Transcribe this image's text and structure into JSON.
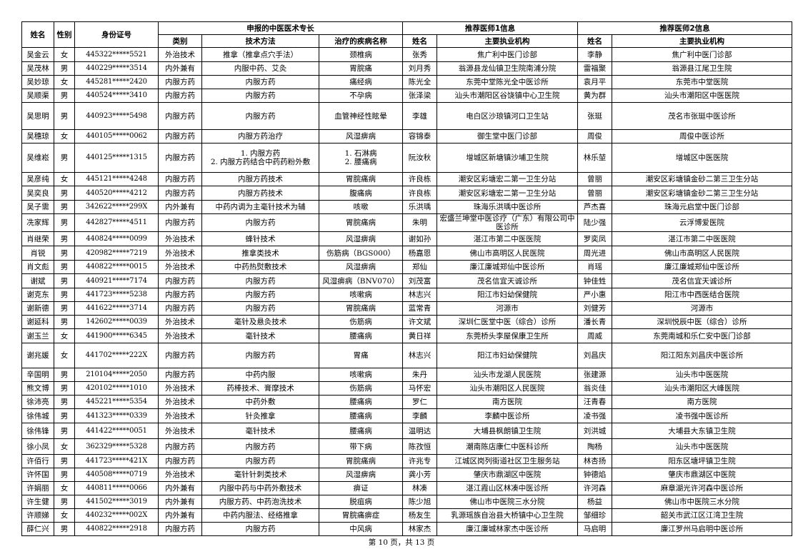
{
  "header": {
    "name": "姓名",
    "gender": "性别",
    "id_number": "身份证号",
    "specialty_group": "申报的中医医术专长",
    "category": "类别",
    "technique": "技术方法",
    "disease": "治疗的疾病名称",
    "doctor1_group": "推荐医师1信息",
    "doctor1_name": "姓名",
    "doctor1_org": "主要执业机构",
    "doctor2_group": "推荐医师2信息",
    "doctor2_name": "姓名",
    "doctor2_org": "主要执业机构"
  },
  "rows": [
    {
      "name": "吴金云",
      "gender": "女",
      "id": "445322*****5521",
      "category": "外治技术",
      "technique": "推拿（推拿点穴手法）",
      "disease": "颈椎病",
      "d1_name": "张秀",
      "d1_org": "焦广利中医门诊部",
      "d2_name": "李静",
      "d2_org": "焦广利中医门诊部"
    },
    {
      "name": "吴茂林",
      "gender": "男",
      "id": "440229*****3514",
      "category": "内外兼有",
      "technique": "内服中药、艾灸",
      "disease": "胃脘痛",
      "d1_name": "刘月秀",
      "d1_org": "翁源县龙仙镇卫生院南浦分院",
      "d2_name": "雷福聚",
      "d2_org": "翁源县江尾卫生院"
    },
    {
      "name": "吴妙琼",
      "gender": "女",
      "id": "445281*****2420",
      "category": "内服方药",
      "technique": "内服方药",
      "disease": "痛经病",
      "d1_name": "陈光全",
      "d1_org": "东莞中堂陈光全中医诊所",
      "d2_name": "袁月平",
      "d2_org": "东莞市中堂医院"
    },
    {
      "name": "吴顺渠",
      "gender": "男",
      "id": "440524*****3410",
      "category": "内服方药",
      "technique": "内服方药",
      "disease": "不孕病",
      "d1_name": "张泽梁",
      "d1_org": "汕头市潮阳区谷饶镇中心卫生院",
      "d2_name": "黄为群",
      "d2_org": "汕头市潮阳区中医医院"
    },
    {
      "name": "吴思明",
      "gender": "男",
      "id": "440923*****5498",
      "category": "内服方药",
      "technique": "内服方药",
      "disease": "血管神经性眩晕",
      "d1_name": "李雄",
      "d1_org": "电白区沙琅镇河口卫生站",
      "d2_name": "张珽",
      "d2_org": "茂名市张珽中医诊所"
    },
    {
      "name": "吴穗琼",
      "gender": "女",
      "id": "440105*****0062",
      "category": "内服方药",
      "technique": "内服方药治疗",
      "disease": "风湿痹病",
      "d1_name": "容锦泰",
      "d1_org": "御生堂中医门诊部",
      "d2_name": "周俊",
      "d2_org": "周俊中医诊所"
    },
    {
      "name": "吴维崧",
      "gender": "男",
      "id": "440125*****1315",
      "category": "内服方药",
      "technique": "1. 内服方药",
      "technique2": "2. 内服方药结合中药药粉外敷",
      "disease": "1. 石淋病",
      "disease2": "2. 腰痛病",
      "d1_name": "阮汝秋",
      "d1_org": "增城区新塘镇沙埔卫生院",
      "d2_name": "林乐堃",
      "d2_org": "增城区中医医院"
    },
    {
      "name": "吴彦纯",
      "gender": "女",
      "id": "445121*****4248",
      "category": "内服方药",
      "technique": "内服方药技术",
      "disease": "胃脘痛病",
      "d1_name": "许良栋",
      "d1_org": "潮安区彩塘宏二第一卫生分站",
      "d2_name": "曾丽",
      "d2_org": "潮安区彩塘镇金砂二第三卫生分站"
    },
    {
      "name": "吴奕良",
      "gender": "男",
      "id": "440520*****4212",
      "category": "内服方药",
      "technique": "内服方药技术",
      "disease": "腹痛病",
      "d1_name": "许良栋",
      "d1_org": "潮安区彩塘宏二第一卫生分站",
      "d2_name": "曾丽",
      "d2_org": "潮安区彩塘镇金砂二第三卫生分站"
    },
    {
      "name": "吴子需",
      "gender": "男",
      "id": "342622*****299X",
      "category": "内外兼有",
      "technique": "中药内调为主毫针技术为辅",
      "disease": "咳嗽",
      "d1_name": "乐洪瑀",
      "d1_org": "珠海乐洪瑀中医诊所",
      "d2_name": "芦杰喜",
      "d2_org": "珠海元启堂中医门诊部"
    },
    {
      "name": "冼家辉",
      "gender": "男",
      "id": "442827*****4511",
      "category": "内服方药",
      "technique": "内服方药",
      "disease": "胃脘痛病",
      "d1_name": "朱明",
      "d1_org": "宏盛兰坤堂中医诊疗（广东）有限公司中医诊所",
      "d2_name": "陆少强",
      "d2_org": "云浮博爱医院"
    },
    {
      "name": "肖继荣",
      "gender": "男",
      "id": "440824*****0099",
      "category": "外治技术",
      "technique": "蜂针技术",
      "disease": "风湿痹病",
      "d1_name": "谢如孙",
      "d1_org": "湛江市第二中医医院",
      "d2_name": "罗奕凤",
      "d2_org": "湛江市第二中医医院"
    },
    {
      "name": "肖锐",
      "gender": "男",
      "id": "420982*****7219",
      "category": "外治技术",
      "technique": "推拿类技术",
      "disease": "伤筋病（BGS000）",
      "d1_name": "杨嘉恩",
      "d1_org": "佛山市高明区人民医院",
      "d2_name": "周光进",
      "d2_org": "佛山市高明区人民医院"
    },
    {
      "name": "肖文彪",
      "gender": "男",
      "id": "440822*****0015",
      "category": "外治技术",
      "technique": "中药热熨敷技术",
      "disease": "风湿痹病",
      "d1_name": "郑仙",
      "d1_org": "廉江廉城郑仙中医诊所",
      "d2_name": "肖瑶",
      "d2_org": "廉江廉城郑仙中医诊所"
    },
    {
      "name": "谢斌",
      "gender": "男",
      "id": "440921*****7174",
      "category": "内服方药",
      "technique": "内服方药",
      "disease": "风湿痹病（BNV070）",
      "d1_name": "刘茂富",
      "d1_org": "茂名信宜天诚诊所",
      "d2_name": "钟佳甡",
      "d2_org": "茂名信宜天诚诊所"
    },
    {
      "name": "谢克东",
      "gender": "男",
      "id": "441723*****5238",
      "category": "内服方药",
      "technique": "内服方药",
      "disease": "咳嗽病",
      "d1_name": "林志兴",
      "d1_org": "阳江市妇幼保健院",
      "d2_name": "严小惠",
      "d2_org": "阳江市中西医结合医院"
    },
    {
      "name": "谢新德",
      "gender": "男",
      "id": "441622*****3714",
      "category": "内服方药",
      "technique": "内服方药",
      "disease": "胃脘痛病",
      "d1_name": "蓝常青",
      "d1_org": "河源市",
      "d2_name": "刘健芳",
      "d2_org": "河源市"
    },
    {
      "name": "谢延科",
      "gender": "男",
      "id": "142602*****0039",
      "category": "外治技术",
      "technique": "毫针及悬灸技术",
      "disease": "伤筋病",
      "d1_name": "许文斌",
      "d1_org": "深圳仁医堂中医（综合）诊所",
      "d2_name": "潘长青",
      "d2_org": "深圳悦辰中医（综合）诊所"
    },
    {
      "name": "谢玉兰",
      "gender": "女",
      "id": "441900*****6345",
      "category": "外治技术",
      "technique": "毫针技术",
      "disease": "腰痛病",
      "d1_name": "黄日祥",
      "d1_org": "东莞桥头李屋保康卫生所",
      "d2_name": "周威",
      "d2_org": "东莞南城和乐仁安中医门诊部"
    },
    {
      "name": "谢兆媛",
      "gender": "女",
      "id": "441702*****222X",
      "category": "内服方药",
      "technique": "内服方药",
      "disease": "胃痛",
      "d1_name": "林志兴",
      "d1_org": "阳江市妇幼保健院",
      "d2_name": "刘昌庆",
      "d2_org": "阳江阳东刘昌庆中医诊所"
    },
    {
      "name": "辛国明",
      "gender": "男",
      "id": "210104*****2050",
      "category": "内服方药",
      "technique": "中药内服",
      "disease": "咳嗽病",
      "d1_name": "朱丹",
      "d1_org": "汕头市龙湖人民医院",
      "d2_name": "张建源",
      "d2_org": "汕头市中医医院"
    },
    {
      "name": "熊文博",
      "gender": "男",
      "id": "420102*****1010",
      "category": "外治技术",
      "technique": "药棒技术、膏摩技术",
      "disease": "伤筋病",
      "d1_name": "马怀宏",
      "d1_org": "汕头市潮阳区人民医院",
      "d2_name": "翁炎佳",
      "d2_org": "汕头市潮阳区大峰医院"
    },
    {
      "name": "徐沛亮",
      "gender": "男",
      "id": "445221*****5354",
      "category": "外治技术",
      "technique": "中药外敷",
      "disease": "腰痛病",
      "d1_name": "罗仁",
      "d1_org": "南方医院",
      "d2_name": "汪青春",
      "d2_org": "南方医院"
    },
    {
      "name": "徐伟城",
      "gender": "男",
      "id": "441323*****0339",
      "category": "外治技术",
      "technique": "针灸推拿",
      "disease": "腰痛病",
      "d1_name": "李麟",
      "d1_org": "李麟中医诊所",
      "d2_name": "凌书强",
      "d2_org": "凌书强中医诊所"
    },
    {
      "name": "徐伟锋",
      "gender": "男",
      "id": "441422*****0051",
      "category": "外治技术",
      "technique": "毫针技术",
      "disease": "腰痛病",
      "d1_name": "温明达",
      "d1_org": "大埔县枫朗镇卫生院",
      "d2_name": "刘洪城",
      "d2_org": "大埔县大东镇卫生院"
    },
    {
      "name": "徐小凤",
      "gender": "女",
      "id": "362329*****5328",
      "category": "内服方药",
      "technique": "内服方药",
      "disease": "带下病",
      "d1_name": "陈孜恒",
      "d1_org": "潮南陈店康仁中医科诊所",
      "d2_name": "陶杨",
      "d2_org": "汕头市中医医院"
    },
    {
      "name": "许佰行",
      "gender": "男",
      "id": "441723*****421X",
      "category": "内服方药",
      "technique": "内服方药",
      "disease": "胃脘痛病",
      "d1_name": "许兆专",
      "d1_org": "江城区岗列街道社区卫生服务站",
      "d2_name": "林杏扬",
      "d2_org": "阳东区塘坪镇卫生院"
    },
    {
      "name": "许怀国",
      "gender": "男",
      "id": "440508*****0719",
      "category": "外治技术",
      "technique": "毫针针刺类技术",
      "disease": "风湿痹病",
      "d1_name": "龚小芳",
      "d1_org": "肇庆市鼎湖区中医院",
      "d2_name": "钟德焰",
      "d2_org": "肇庆市鼎湖区中医院"
    },
    {
      "name": "许娟丽",
      "gender": "女",
      "id": "440811*****0066",
      "category": "内外兼有",
      "technique": "内服中药与中药外敷技术",
      "disease": "痹证",
      "d1_name": "林凑",
      "d1_org": "湛江霞山区林凑中医诊所",
      "d2_name": "许河森",
      "d2_org": "麻章湖光许河森中医诊所"
    },
    {
      "name": "许生健",
      "gender": "男",
      "id": "441502*****3019",
      "category": "内外兼有",
      "technique": "内服方药、中药泡洗技术",
      "disease": "脱疽病",
      "d1_name": "陈少旭",
      "d1_org": "佛山市中医院三水分院",
      "d2_name": "杨益",
      "d2_org": "佛山市中医院三水分院"
    },
    {
      "name": "许顺娣",
      "gender": "女",
      "id": "440232*****002X",
      "category": "内外兼有",
      "technique": "中药内服法、经络推拿",
      "disease": "胃脘痛痹症",
      "d1_name": "杨友生",
      "d1_org": "乳源瑶族自治县大桥镇中心卫生院",
      "d2_name": "邹细珍",
      "d2_org": "韶关市武江区江湾卫生院"
    },
    {
      "name": "薛仁兴",
      "gender": "男",
      "id": "440822*****2918",
      "category": "内服方药",
      "technique": "内服方药",
      "disease": "中风病",
      "d1_name": "林家杰",
      "d1_org": "廉江廉城林家杰中医诊所",
      "d2_name": "马启明",
      "d2_org": "廉江罗州马启明中医诊所"
    }
  ],
  "footer": {
    "page_text": "第 10 页，共 13 页"
  }
}
